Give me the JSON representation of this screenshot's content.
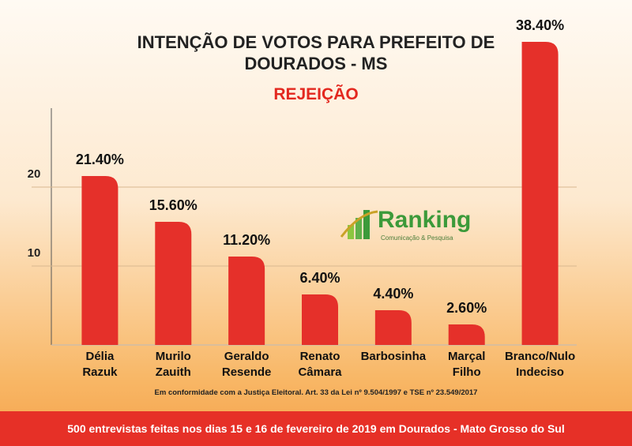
{
  "title": "INTENÇÃO DE VOTOS PARA PREFEITO DE\nDOURADOS - MS",
  "subtitle": "REJEIÇÃO",
  "logo": {
    "name": "Ranking",
    "tagline": "Comunicação & Pesquisa"
  },
  "note": "Em conformidade com a Justiça Eleitoral. Art. 33 da Lei nº 9.504/1997 e TSE nº 23.549/2017",
  "footer": "500 entrevistas feitas nos dias 15 e 16 de fevereiro de 2019 em Dourados - Mato Grosso do Sul",
  "chart_data": {
    "type": "bar",
    "categories": [
      "Délia\nRazuk",
      "Murilo\nZauith",
      "Geraldo\nResende",
      "Renato\nCâmara",
      "Barbosinha",
      "Marçal\nFilho",
      "Branco/Nulo\nIndeciso"
    ],
    "values": [
      21.4,
      15.6,
      11.2,
      6.4,
      4.4,
      2.6,
      38.4
    ],
    "value_labels": [
      "21.40%",
      "15.60%",
      "11.20%",
      "6.40%",
      "4.40%",
      "2.60%",
      "38.40%"
    ],
    "color": "#e5302a",
    "ylim": [
      0,
      30
    ],
    "yticks": [
      10,
      20
    ],
    "grid": true
  }
}
